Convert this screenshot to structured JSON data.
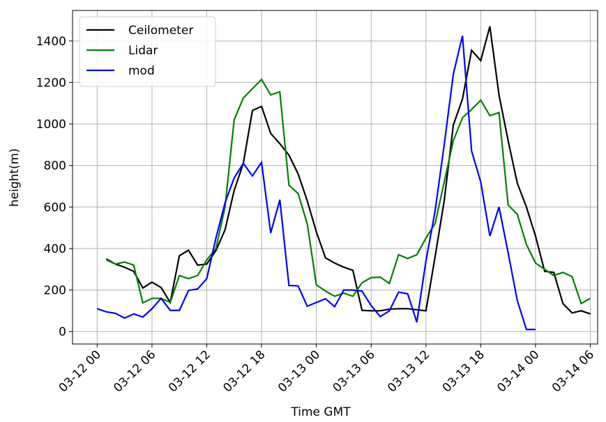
{
  "chart_data": {
    "type": "line",
    "xlabel": "Time GMT",
    "ylabel": "height(m)",
    "x": [
      0,
      1,
      2,
      3,
      4,
      5,
      6,
      7,
      8,
      9,
      10,
      11,
      12,
      13,
      14,
      15,
      16,
      17,
      18,
      19,
      20,
      21,
      22,
      23,
      24,
      25,
      26,
      27,
      28,
      29,
      30,
      31,
      32,
      33,
      34,
      35,
      36,
      37,
      38,
      39,
      40,
      41,
      42,
      43,
      44,
      45,
      46,
      47,
      48,
      49,
      50,
      51,
      52,
      53,
      54
    ],
    "series": [
      {
        "name": "Ceilometer",
        "color": "#000000",
        "values": [
          null,
          350,
          325,
          310,
          290,
          210,
          238,
          212,
          140,
          365,
          392,
          320,
          325,
          390,
          490,
          680,
          810,
          1065,
          1085,
          955,
          905,
          850,
          760,
          630,
          480,
          355,
          330,
          310,
          295,
          102,
          100,
          100,
          108,
          110,
          110,
          105,
          100,
          360,
          630,
          995,
          1120,
          1355,
          1305,
          1470,
          1140,
          920,
          715,
          600,
          460,
          290,
          285,
          135,
          90,
          100,
          85
        ]
      },
      {
        "name": "Lidar",
        "color": "#008000",
        "values": [
          null,
          345,
          325,
          335,
          320,
          138,
          160,
          160,
          140,
          270,
          255,
          270,
          345,
          400,
          600,
          1020,
          1125,
          1170,
          1215,
          1140,
          1155,
          705,
          665,
          520,
          225,
          195,
          170,
          185,
          170,
          235,
          260,
          262,
          232,
          370,
          352,
          370,
          450,
          520,
          720,
          920,
          1030,
          1070,
          1115,
          1040,
          1055,
          610,
          565,
          420,
          330,
          300,
          270,
          285,
          265,
          135,
          160
        ]
      },
      {
        "name": "mod",
        "color": "#0000ff",
        "values": [
          110,
          95,
          88,
          65,
          85,
          70,
          110,
          160,
          102,
          102,
          198,
          205,
          255,
          450,
          620,
          740,
          810,
          750,
          815,
          475,
          635,
          222,
          220,
          122,
          140,
          158,
          120,
          200,
          200,
          195,
          125,
          72,
          100,
          190,
          182,
          45,
          340,
          580,
          900,
          1240,
          1425,
          870,
          720,
          460,
          600,
          380,
          150,
          10,
          10,
          null,
          null,
          null,
          null,
          null,
          null
        ]
      }
    ],
    "xlim": [
      -2.7,
      54.8
    ],
    "xticks": [
      {
        "value": 0,
        "label": "03-12 00"
      },
      {
        "value": 6,
        "label": "03-12 06"
      },
      {
        "value": 12,
        "label": "03-12 12"
      },
      {
        "value": 18,
        "label": "03-12 18"
      },
      {
        "value": 24,
        "label": "03-13 00"
      },
      {
        "value": 30,
        "label": "03-13 06"
      },
      {
        "value": 36,
        "label": "03-13 12"
      },
      {
        "value": 42,
        "label": "03-13 18"
      },
      {
        "value": 48,
        "label": "03-14 00"
      },
      {
        "value": 54,
        "label": "03-14 06"
      }
    ],
    "ylim": [
      -60,
      1547
    ],
    "yticks": [
      0,
      200,
      400,
      600,
      800,
      1000,
      1200,
      1400
    ],
    "grid": true,
    "legend": "upper left"
  }
}
